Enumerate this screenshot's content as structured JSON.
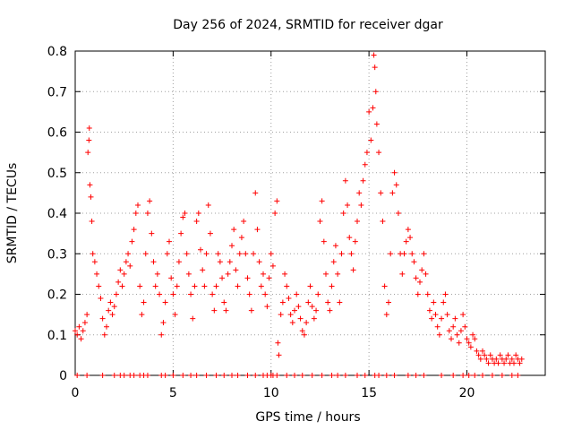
{
  "chart_data": {
    "type": "scatter",
    "title": "Day 256 of 2024, SRMTID for receiver dgar",
    "xlabel": "GPS time / hours",
    "ylabel": "SRMTID / TECUs",
    "xlim": [
      0,
      24
    ],
    "ylim": [
      0,
      0.8
    ],
    "x_ticks": [
      0,
      5,
      10,
      15,
      20
    ],
    "y_ticks": [
      0,
      0.1,
      0.2,
      0.3,
      0.4,
      0.5,
      0.6,
      0.7,
      0.8
    ],
    "x_tick_labels": [
      "0",
      "5",
      "10",
      "15",
      "20"
    ],
    "y_tick_labels": [
      "0",
      "0.1",
      "0.2",
      "0.3",
      "0.4",
      "0.5",
      "0.6",
      "0.7",
      "0.8"
    ],
    "grid": true,
    "marker": "+",
    "color": "#ff0000",
    "series": [
      {
        "name": "SRMTID",
        "points": [
          [
            0.0,
            0.11
          ],
          [
            0.1,
            0.1
          ],
          [
            0.2,
            0.12
          ],
          [
            0.3,
            0.09
          ],
          [
            0.4,
            0.11
          ],
          [
            0.5,
            0.13
          ],
          [
            0.6,
            0.15
          ],
          [
            0.65,
            0.55
          ],
          [
            0.7,
            0.58
          ],
          [
            0.72,
            0.61
          ],
          [
            0.75,
            0.47
          ],
          [
            0.8,
            0.44
          ],
          [
            0.85,
            0.38
          ],
          [
            0.9,
            0.3
          ],
          [
            1.0,
            0.28
          ],
          [
            1.1,
            0.25
          ],
          [
            1.2,
            0.22
          ],
          [
            1.3,
            0.19
          ],
          [
            1.4,
            0.14
          ],
          [
            1.5,
            0.1
          ],
          [
            1.6,
            0.12
          ],
          [
            1.7,
            0.16
          ],
          [
            1.8,
            0.18
          ],
          [
            1.9,
            0.15
          ],
          [
            2.0,
            0.17
          ],
          [
            2.1,
            0.2
          ],
          [
            2.2,
            0.23
          ],
          [
            2.3,
            0.26
          ],
          [
            2.4,
            0.22
          ],
          [
            2.5,
            0.25
          ],
          [
            2.6,
            0.28
          ],
          [
            2.7,
            0.3
          ],
          [
            2.8,
            0.27
          ],
          [
            2.9,
            0.33
          ],
          [
            3.0,
            0.36
          ],
          [
            3.1,
            0.4
          ],
          [
            3.2,
            0.42
          ],
          [
            3.3,
            0.22
          ],
          [
            3.4,
            0.15
          ],
          [
            3.5,
            0.18
          ],
          [
            3.6,
            0.3
          ],
          [
            3.7,
            0.4
          ],
          [
            3.8,
            0.43
          ],
          [
            3.9,
            0.35
          ],
          [
            4.0,
            0.28
          ],
          [
            4.1,
            0.22
          ],
          [
            4.2,
            0.25
          ],
          [
            4.3,
            0.2
          ],
          [
            4.4,
            0.1
          ],
          [
            4.5,
            0.13
          ],
          [
            4.6,
            0.18
          ],
          [
            4.7,
            0.3
          ],
          [
            4.8,
            0.33
          ],
          [
            4.9,
            0.24
          ],
          [
            5.0,
            0.2
          ],
          [
            5.1,
            0.15
          ],
          [
            5.2,
            0.22
          ],
          [
            5.3,
            0.28
          ],
          [
            5.4,
            0.35
          ],
          [
            5.5,
            0.39
          ],
          [
            5.6,
            0.4
          ],
          [
            5.7,
            0.3
          ],
          [
            5.8,
            0.25
          ],
          [
            5.9,
            0.2
          ],
          [
            6.0,
            0.14
          ],
          [
            6.1,
            0.22
          ],
          [
            6.2,
            0.38
          ],
          [
            6.3,
            0.4
          ],
          [
            6.4,
            0.31
          ],
          [
            6.5,
            0.26
          ],
          [
            6.6,
            0.22
          ],
          [
            6.7,
            0.3
          ],
          [
            6.8,
            0.42
          ],
          [
            6.9,
            0.35
          ],
          [
            7.0,
            0.2
          ],
          [
            7.1,
            0.16
          ],
          [
            7.2,
            0.22
          ],
          [
            7.3,
            0.3
          ],
          [
            7.4,
            0.28
          ],
          [
            7.5,
            0.24
          ],
          [
            7.6,
            0.18
          ],
          [
            7.7,
            0.16
          ],
          [
            7.8,
            0.25
          ],
          [
            7.9,
            0.28
          ],
          [
            8.0,
            0.32
          ],
          [
            8.1,
            0.36
          ],
          [
            8.2,
            0.26
          ],
          [
            8.3,
            0.22
          ],
          [
            8.4,
            0.3
          ],
          [
            8.5,
            0.34
          ],
          [
            8.6,
            0.38
          ],
          [
            8.7,
            0.3
          ],
          [
            8.8,
            0.24
          ],
          [
            8.9,
            0.2
          ],
          [
            9.0,
            0.16
          ],
          [
            9.1,
            0.3
          ],
          [
            9.2,
            0.45
          ],
          [
            9.3,
            0.36
          ],
          [
            9.4,
            0.28
          ],
          [
            9.5,
            0.22
          ],
          [
            9.6,
            0.25
          ],
          [
            9.7,
            0.2
          ],
          [
            9.8,
            0.17
          ],
          [
            9.9,
            0.24
          ],
          [
            10.0,
            0.3
          ],
          [
            10.1,
            0.27
          ],
          [
            10.2,
            0.4
          ],
          [
            10.3,
            0.43
          ],
          [
            10.35,
            0.08
          ],
          [
            10.4,
            0.05
          ],
          [
            10.5,
            0.15
          ],
          [
            10.6,
            0.18
          ],
          [
            10.7,
            0.25
          ],
          [
            10.8,
            0.22
          ],
          [
            10.9,
            0.19
          ],
          [
            11.0,
            0.15
          ],
          [
            11.1,
            0.13
          ],
          [
            11.2,
            0.16
          ],
          [
            11.3,
            0.2
          ],
          [
            11.4,
            0.17
          ],
          [
            11.5,
            0.14
          ],
          [
            11.6,
            0.11
          ],
          [
            11.7,
            0.1
          ],
          [
            11.8,
            0.13
          ],
          [
            11.9,
            0.18
          ],
          [
            12.0,
            0.22
          ],
          [
            12.1,
            0.17
          ],
          [
            12.2,
            0.14
          ],
          [
            12.3,
            0.16
          ],
          [
            12.4,
            0.2
          ],
          [
            12.5,
            0.38
          ],
          [
            12.6,
            0.43
          ],
          [
            12.7,
            0.33
          ],
          [
            12.8,
            0.25
          ],
          [
            12.9,
            0.18
          ],
          [
            13.0,
            0.16
          ],
          [
            13.1,
            0.22
          ],
          [
            13.2,
            0.28
          ],
          [
            13.3,
            0.32
          ],
          [
            13.4,
            0.25
          ],
          [
            13.5,
            0.18
          ],
          [
            13.6,
            0.3
          ],
          [
            13.7,
            0.4
          ],
          [
            13.8,
            0.48
          ],
          [
            13.9,
            0.42
          ],
          [
            14.0,
            0.34
          ],
          [
            14.1,
            0.3
          ],
          [
            14.2,
            0.26
          ],
          [
            14.3,
            0.33
          ],
          [
            14.4,
            0.38
          ],
          [
            14.5,
            0.45
          ],
          [
            14.6,
            0.42
          ],
          [
            14.7,
            0.48
          ],
          [
            14.8,
            0.52
          ],
          [
            14.9,
            0.55
          ],
          [
            15.0,
            0.65
          ],
          [
            15.1,
            0.58
          ],
          [
            15.2,
            0.66
          ],
          [
            15.25,
            0.79
          ],
          [
            15.3,
            0.76
          ],
          [
            15.35,
            0.7
          ],
          [
            15.4,
            0.62
          ],
          [
            15.5,
            0.55
          ],
          [
            15.6,
            0.45
          ],
          [
            15.7,
            0.38
          ],
          [
            15.8,
            0.22
          ],
          [
            15.9,
            0.15
          ],
          [
            16.0,
            0.18
          ],
          [
            16.1,
            0.3
          ],
          [
            16.2,
            0.45
          ],
          [
            16.3,
            0.5
          ],
          [
            16.4,
            0.47
          ],
          [
            16.5,
            0.4
          ],
          [
            16.6,
            0.3
          ],
          [
            16.7,
            0.25
          ],
          [
            16.8,
            0.3
          ],
          [
            16.9,
            0.33
          ],
          [
            17.0,
            0.36
          ],
          [
            17.1,
            0.34
          ],
          [
            17.2,
            0.3
          ],
          [
            17.3,
            0.28
          ],
          [
            17.4,
            0.24
          ],
          [
            17.5,
            0.2
          ],
          [
            17.6,
            0.23
          ],
          [
            17.7,
            0.26
          ],
          [
            17.8,
            0.3
          ],
          [
            17.9,
            0.25
          ],
          [
            18.0,
            0.2
          ],
          [
            18.1,
            0.16
          ],
          [
            18.2,
            0.14
          ],
          [
            18.3,
            0.18
          ],
          [
            18.4,
            0.15
          ],
          [
            18.5,
            0.12
          ],
          [
            18.6,
            0.1
          ],
          [
            18.7,
            0.14
          ],
          [
            18.8,
            0.18
          ],
          [
            18.9,
            0.2
          ],
          [
            19.0,
            0.15
          ],
          [
            19.1,
            0.11
          ],
          [
            19.2,
            0.09
          ],
          [
            19.3,
            0.12
          ],
          [
            19.4,
            0.14
          ],
          [
            19.5,
            0.1
          ],
          [
            19.6,
            0.08
          ],
          [
            19.7,
            0.11
          ],
          [
            19.8,
            0.15
          ],
          [
            19.9,
            0.12
          ],
          [
            20.0,
            0.09
          ],
          [
            20.1,
            0.08
          ],
          [
            20.2,
            0.07
          ],
          [
            20.3,
            0.1
          ],
          [
            20.4,
            0.09
          ],
          [
            20.5,
            0.06
          ],
          [
            20.6,
            0.05
          ],
          [
            20.7,
            0.04
          ],
          [
            20.8,
            0.06
          ],
          [
            20.9,
            0.05
          ],
          [
            21.0,
            0.04
          ],
          [
            21.1,
            0.03
          ],
          [
            21.2,
            0.05
          ],
          [
            21.3,
            0.04
          ],
          [
            21.4,
            0.03
          ],
          [
            21.5,
            0.04
          ],
          [
            21.6,
            0.03
          ],
          [
            21.7,
            0.05
          ],
          [
            21.8,
            0.04
          ],
          [
            21.9,
            0.03
          ],
          [
            22.0,
            0.04
          ],
          [
            22.1,
            0.05
          ],
          [
            22.2,
            0.03
          ],
          [
            22.3,
            0.04
          ],
          [
            22.4,
            0.03
          ],
          [
            22.5,
            0.05
          ],
          [
            22.6,
            0.04
          ],
          [
            22.7,
            0.03
          ],
          [
            22.8,
            0.04
          ]
        ],
        "zero_points": [
          0.1,
          0.6,
          1.4,
          2.0,
          2.3,
          2.5,
          2.8,
          3.0,
          3.3,
          3.5,
          3.7,
          4.4,
          4.6,
          5.0,
          5.5,
          5.9,
          6.2,
          6.7,
          7.2,
          7.6,
          8.0,
          8.3,
          8.8,
          9.2,
          9.6,
          9.8,
          10.0,
          10.1,
          10.3,
          10.8,
          11.2,
          11.6,
          12.1,
          12.6,
          13.1,
          13.4,
          13.8,
          14.4,
          14.8,
          15.3,
          15.5,
          15.9,
          16.3,
          17.0,
          17.4,
          17.8,
          18.7,
          19.3,
          19.8,
          20.1,
          20.4,
          20.8,
          21.3,
          21.8,
          22.3,
          22.6
        ]
      }
    ]
  }
}
